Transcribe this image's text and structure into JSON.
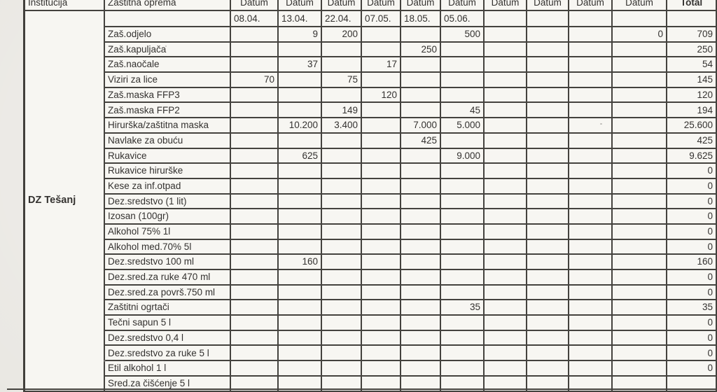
{
  "page": {
    "background_color": "#e9e7e2",
    "cell_color": "#f7f6f2",
    "border_color": "#44423e",
    "text_color": "#343230"
  },
  "table": {
    "headers": {
      "institution": "Institucija",
      "equipment": "Zaštitna oprema",
      "datum": "Datum",
      "total": "Total"
    },
    "datum_column_count": 10,
    "date_row": [
      "08.04.",
      "13.04.",
      "22.04.",
      "07.05.",
      "18.05.",
      "05.06.",
      "",
      "",
      "",
      ""
    ],
    "institution": "DZ Tešanj",
    "rows": [
      {
        "item": "Zaš.odjelo",
        "values": [
          "",
          "9",
          "200",
          "",
          "",
          "500",
          "",
          "",
          "",
          "0"
        ],
        "total": "709"
      },
      {
        "item": "Zaš.kapuljača",
        "values": [
          "",
          "",
          "",
          "",
          "250",
          "",
          "",
          "",
          "",
          ""
        ],
        "total": "250"
      },
      {
        "item": "Zaš.naočale",
        "values": [
          "",
          "37",
          "",
          "17",
          "",
          "",
          "",
          "",
          "",
          ""
        ],
        "total": "54"
      },
      {
        "item": "Viziri za lice",
        "values": [
          "70",
          "",
          "75",
          "",
          "",
          "",
          "",
          "",
          "",
          ""
        ],
        "total": "145"
      },
      {
        "item": "Zaš.maska FFP3",
        "values": [
          "",
          "",
          "",
          "120",
          "",
          "",
          "",
          "",
          "",
          ""
        ],
        "total": "120"
      },
      {
        "item": "Zaš.maska FFP2",
        "values": [
          "",
          "",
          "149",
          "",
          "",
          "45",
          "",
          "",
          "",
          ""
        ],
        "total": "194"
      },
      {
        "item": "Hirurška/zaštitna maska",
        "values": [
          "",
          "10.200",
          "3.400",
          "",
          "7.000",
          "5.000",
          "",
          "",
          "",
          ""
        ],
        "total": "25.600"
      },
      {
        "item": "Navlake za obuću",
        "values": [
          "",
          "",
          "",
          "",
          "425",
          "",
          "",
          "",
          "",
          ""
        ],
        "total": "425"
      },
      {
        "item": "Rukavice",
        "values": [
          "",
          "625",
          "",
          "",
          "",
          "9.000",
          "",
          "",
          "",
          ""
        ],
        "total": "9.625"
      },
      {
        "item": "Rukavice hirurške",
        "values": [
          "",
          "",
          "",
          "",
          "",
          "",
          "",
          "",
          "",
          ""
        ],
        "total": "0"
      },
      {
        "item": "Kese za inf.otpad",
        "values": [
          "",
          "",
          "",
          "",
          "",
          "",
          "",
          "",
          "",
          ""
        ],
        "total": "0"
      },
      {
        "item": "Dez.sredstvo (1 lit)",
        "values": [
          "",
          "",
          "",
          "",
          "",
          "",
          "",
          "",
          "",
          ""
        ],
        "total": "0"
      },
      {
        "item": "Izosan (100gr)",
        "values": [
          "",
          "",
          "",
          "",
          "",
          "",
          "",
          "",
          "",
          ""
        ],
        "total": "0"
      },
      {
        "item": "Alkohol 75% 1l",
        "values": [
          "",
          "",
          "",
          "",
          "",
          "",
          "",
          "",
          "",
          ""
        ],
        "total": "0"
      },
      {
        "item": "Alkohol med.70%  5l",
        "values": [
          "",
          "",
          "",
          "",
          "",
          "",
          "",
          "",
          "",
          ""
        ],
        "total": "0"
      },
      {
        "item": "Dez.sredstvo 100 ml",
        "values": [
          "",
          "160",
          "",
          "",
          "",
          "",
          "",
          "",
          "",
          ""
        ],
        "total": "160"
      },
      {
        "item": "Dez.sred.za ruke 470 ml",
        "values": [
          "",
          "",
          "",
          "",
          "",
          "",
          "",
          "",
          "",
          ""
        ],
        "total": "0"
      },
      {
        "item": "Dez.sred.za površ.750 ml",
        "values": [
          "",
          "",
          "",
          "",
          "",
          "",
          "",
          "",
          "",
          ""
        ],
        "total": "0"
      },
      {
        "item": "Zaštitni ogrtači",
        "values": [
          "",
          "",
          "",
          "",
          "",
          "35",
          "",
          "",
          "",
          ""
        ],
        "total": "35"
      },
      {
        "item": "Tečni sapun 5 l",
        "values": [
          "",
          "",
          "",
          "",
          "",
          "",
          "",
          "",
          "",
          ""
        ],
        "total": "0"
      },
      {
        "item": "Dez.sredstvo 0,4 l",
        "values": [
          "",
          "",
          "",
          "",
          "",
          "",
          "",
          "",
          "",
          ""
        ],
        "total": "0"
      },
      {
        "item": "Dez.sredstvo za ruke 5 l",
        "values": [
          "",
          "",
          "",
          "",
          "",
          "",
          "",
          "",
          "",
          ""
        ],
        "total": "0"
      },
      {
        "item": "Etil alkohol 1 l",
        "values": [
          "",
          "",
          "",
          "",
          "",
          "",
          "",
          "",
          "",
          ""
        ],
        "total": "0"
      },
      {
        "item": "Sred.za čišćenje 5 l",
        "values": [
          "",
          "",
          "",
          "",
          "",
          "",
          "",
          "",
          "",
          ""
        ],
        "total": ""
      }
    ]
  }
}
